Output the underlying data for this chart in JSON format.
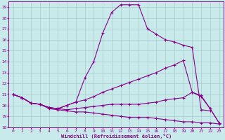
{
  "xlabel": "Windchill (Refroidissement éolien,°C)",
  "bg_color": "#c8eaea",
  "line_color": "#880088",
  "grid_color": "#a8cccc",
  "ylim": [
    18,
    29.5
  ],
  "xlim": [
    -0.5,
    23.5
  ],
  "yticks": [
    18,
    19,
    20,
    21,
    22,
    23,
    24,
    25,
    26,
    27,
    28,
    29
  ],
  "xticks": [
    0,
    1,
    2,
    3,
    4,
    5,
    6,
    7,
    8,
    9,
    10,
    11,
    12,
    13,
    14,
    15,
    16,
    17,
    18,
    19,
    20,
    21,
    22,
    23
  ],
  "curves": [
    {
      "x": [
        0,
        1,
        2,
        3,
        4,
        5,
        6,
        7,
        8,
        9,
        10,
        11,
        12,
        13,
        14,
        15,
        16,
        17,
        18,
        19,
        20,
        21,
        22
      ],
      "y": [
        21.0,
        20.7,
        20.2,
        20.1,
        19.8,
        19.7,
        20.0,
        20.3,
        22.5,
        24.0,
        26.6,
        28.5,
        29.2,
        29.2,
        29.2,
        27.0,
        26.5,
        26.0,
        25.8,
        25.5,
        25.3,
        19.6,
        19.5
      ]
    },
    {
      "x": [
        0,
        1,
        2,
        3,
        4,
        5,
        6,
        7,
        8,
        9,
        10,
        11,
        12,
        13,
        14,
        15,
        16,
        17,
        18,
        19,
        20,
        21,
        22,
        23
      ],
      "y": [
        21.0,
        20.7,
        20.2,
        20.1,
        19.8,
        19.7,
        20.0,
        20.3,
        20.5,
        20.8,
        21.2,
        21.5,
        21.8,
        22.1,
        22.4,
        22.7,
        23.0,
        23.4,
        23.7,
        24.1,
        21.2,
        20.8,
        19.7,
        18.4
      ]
    },
    {
      "x": [
        0,
        1,
        2,
        3,
        4,
        5,
        6,
        7,
        8,
        9,
        10,
        11,
        12,
        13,
        14,
        15,
        16,
        17,
        18,
        19,
        20,
        21,
        22,
        23
      ],
      "y": [
        21.0,
        20.7,
        20.2,
        20.1,
        19.8,
        19.7,
        19.6,
        19.7,
        19.8,
        19.9,
        20.0,
        20.1,
        20.1,
        20.1,
        20.1,
        20.2,
        20.3,
        20.5,
        20.6,
        20.7,
        21.2,
        20.9,
        19.7,
        18.4
      ]
    },
    {
      "x": [
        0,
        1,
        2,
        3,
        4,
        5,
        6,
        7,
        8,
        9,
        10,
        11,
        12,
        13,
        14,
        15,
        16,
        17,
        18,
        19,
        20,
        21,
        22,
        23
      ],
      "y": [
        21.0,
        20.7,
        20.2,
        20.1,
        19.7,
        19.6,
        19.5,
        19.4,
        19.4,
        19.3,
        19.2,
        19.1,
        19.0,
        18.9,
        18.9,
        18.9,
        18.8,
        18.7,
        18.6,
        18.5,
        18.5,
        18.4,
        18.4,
        18.3
      ]
    }
  ]
}
